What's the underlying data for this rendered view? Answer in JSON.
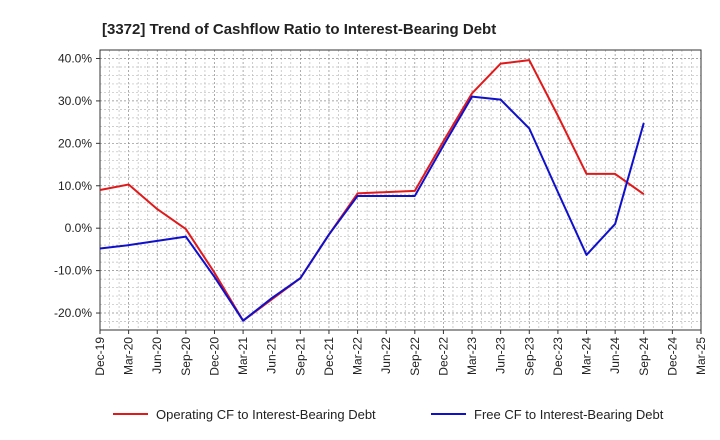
{
  "chart_data": {
    "type": "line",
    "title": "[3372]  Trend of Cashflow Ratio to Interest-Bearing Debt",
    "xlabel": "",
    "ylabel": "",
    "categories": [
      "Dec-19",
      "Mar-20",
      "Jun-20",
      "Sep-20",
      "Dec-20",
      "Mar-21",
      "Jun-21",
      "Sep-21",
      "Dec-21",
      "Mar-22",
      "Jun-22",
      "Sep-22",
      "Dec-22",
      "Mar-23",
      "Jun-23",
      "Sep-23",
      "Dec-23",
      "Mar-24",
      "Jun-24",
      "Sep-24",
      "Dec-24",
      "Mar-25"
    ],
    "x_ticks": [
      "Dec-19",
      "Mar-20",
      "Jun-20",
      "Sep-20",
      "Dec-20",
      "Mar-21",
      "Jun-21",
      "Sep-21",
      "Dec-21",
      "Mar-22",
      "Jun-22",
      "Sep-22",
      "Dec-22",
      "Mar-23",
      "Jun-23",
      "Sep-23",
      "Dec-23",
      "Mar-24",
      "Jun-24",
      "Sep-24",
      "Dec-24",
      "Mar-25"
    ],
    "y_ticks": [
      "40.0%",
      "30.0%",
      "20.0%",
      "10.0%",
      "0.0%",
      "-10.0%",
      "-20.0%"
    ],
    "y_tick_values": [
      40,
      30,
      20,
      10,
      0,
      -10,
      -20
    ],
    "ylim": [
      -24,
      42
    ],
    "grid": true,
    "legend_position": "bottom",
    "series": [
      {
        "name": "Operating CF to Interest-Bearing Debt",
        "color": "#e0191b",
        "values": [
          9.0,
          10.3,
          4.5,
          -0.2,
          -10.5,
          -21.8,
          -16.8,
          -11.8,
          -1.5,
          8.2,
          8.5,
          8.8,
          20.5,
          31.8,
          38.8,
          39.6,
          26.5,
          12.8,
          12.8,
          8.0,
          null,
          null
        ]
      },
      {
        "name": "Free CF to Interest-Bearing Debt",
        "color": "#1010cc",
        "values": [
          -4.8,
          -4.0,
          -3.0,
          -2.0,
          -11.5,
          -21.8,
          -16.5,
          -11.8,
          -1.5,
          7.6,
          7.6,
          7.6,
          19.5,
          31.0,
          30.3,
          23.5,
          8.5,
          -6.3,
          1.0,
          24.8,
          null,
          null
        ]
      }
    ]
  }
}
